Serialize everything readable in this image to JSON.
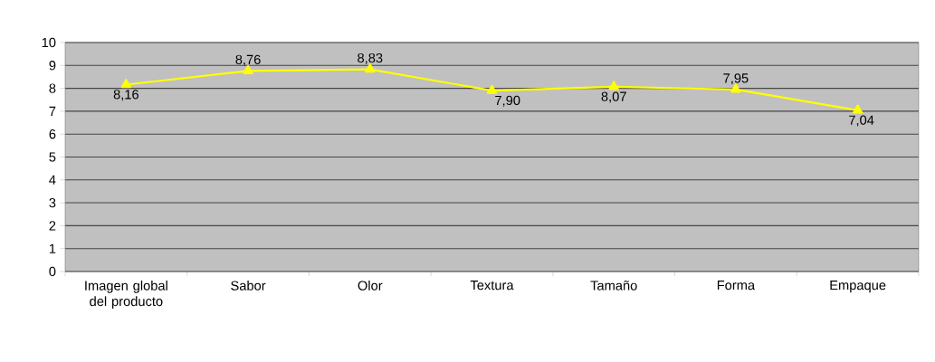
{
  "chart_data": {
    "type": "line",
    "categories": [
      "Imagen global del producto",
      "Sabor",
      "Olor",
      "Textura",
      "Tamaño",
      "Forma",
      "Empaque"
    ],
    "series": [
      {
        "color": "#ffff00",
        "values": [
          8.16,
          8.76,
          8.83,
          7.9,
          8.07,
          7.95,
          7.04
        ],
        "value_labels": [
          "8,16",
          "8,76",
          "8,83",
          "7,90",
          "8,07",
          "7,95",
          "7,04"
        ]
      }
    ],
    "ylim": [
      0,
      10
    ],
    "yticks": [
      0,
      1,
      2,
      3,
      4,
      5,
      6,
      7,
      8,
      9,
      10
    ],
    "grid": "y",
    "marker": "triangle",
    "line_style": "solid"
  }
}
